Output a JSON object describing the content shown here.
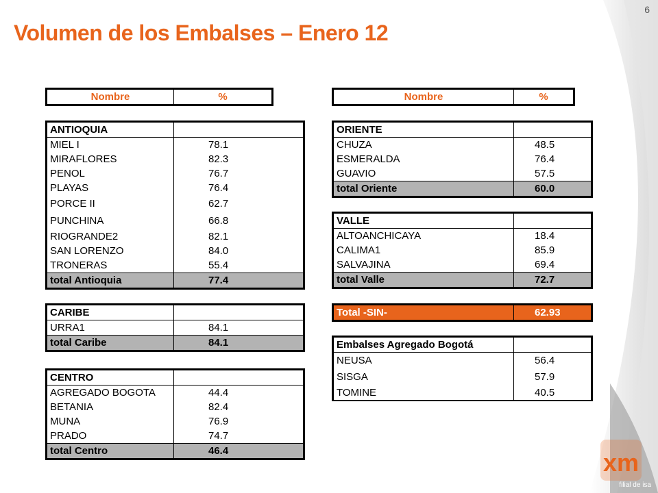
{
  "page_number": "6",
  "title": "Volumen de los Embalses – Enero 12",
  "left_header": {
    "name": "Nombre",
    "pct": "%"
  },
  "right_header": {
    "name": "Nombre",
    "pct": "%"
  },
  "antioquia": {
    "group": "ANTIOQUIA",
    "rows": [
      {
        "name": "MIEL I",
        "pct": "78.1"
      },
      {
        "name": "MIRAFLORES",
        "pct": "82.3"
      },
      {
        "name": "PENOL",
        "pct": "76.7"
      },
      {
        "name": "PLAYAS",
        "pct": "76.4"
      },
      {
        "name": "PORCE II",
        "pct": "62.7"
      },
      {
        "name": "PUNCHINA",
        "pct": "66.8"
      },
      {
        "name": "RIOGRANDE2",
        "pct": "82.1"
      },
      {
        "name": "SAN LORENZO",
        "pct": "84.0"
      },
      {
        "name": "TRONERAS",
        "pct": "55.4"
      }
    ],
    "total": {
      "name": "total Antioquia",
      "pct": "77.4"
    }
  },
  "caribe": {
    "group": "CARIBE",
    "rows": [
      {
        "name": "URRA1",
        "pct": "84.1"
      }
    ],
    "total": {
      "name": "total Caribe",
      "pct": "84.1"
    }
  },
  "centro": {
    "group": "CENTRO",
    "rows": [
      {
        "name": "AGREGADO BOGOTA",
        "pct": "44.4"
      },
      {
        "name": "BETANIA",
        "pct": "82.4"
      },
      {
        "name": "MUNA",
        "pct": "76.9"
      },
      {
        "name": "PRADO",
        "pct": "74.7"
      }
    ],
    "total": {
      "name": "total Centro",
      "pct": "46.4"
    }
  },
  "oriente": {
    "group": "ORIENTE",
    "rows": [
      {
        "name": "CHUZA",
        "pct": "48.5"
      },
      {
        "name": "ESMERALDA",
        "pct": "76.4"
      },
      {
        "name": "GUAVIO",
        "pct": "57.5"
      }
    ],
    "total": {
      "name": "total Oriente",
      "pct": "60.0"
    }
  },
  "valle": {
    "group": "VALLE",
    "rows": [
      {
        "name": "ALTOANCHICAYA",
        "pct": "18.4"
      },
      {
        "name": "CALIMA1",
        "pct": "85.9"
      },
      {
        "name": "SALVAJINA",
        "pct": "69.4"
      }
    ],
    "total": {
      "name": "total Valle",
      "pct": "72.7"
    }
  },
  "sin_total": {
    "name": "Total -SIN-",
    "pct": "62.93"
  },
  "bogota": {
    "group": "Embalses Agregado Bogotá",
    "rows": [
      {
        "name": "NEUSA",
        "pct": "56.4"
      },
      {
        "name": "SISGA",
        "pct": "57.9"
      },
      {
        "name": "TOMINE",
        "pct": "40.5"
      }
    ]
  },
  "logo": {
    "text": "xm",
    "tagline": "filial de isa"
  },
  "colors": {
    "accent": "#e8641c",
    "total_bg": "#b3b3b3"
  }
}
